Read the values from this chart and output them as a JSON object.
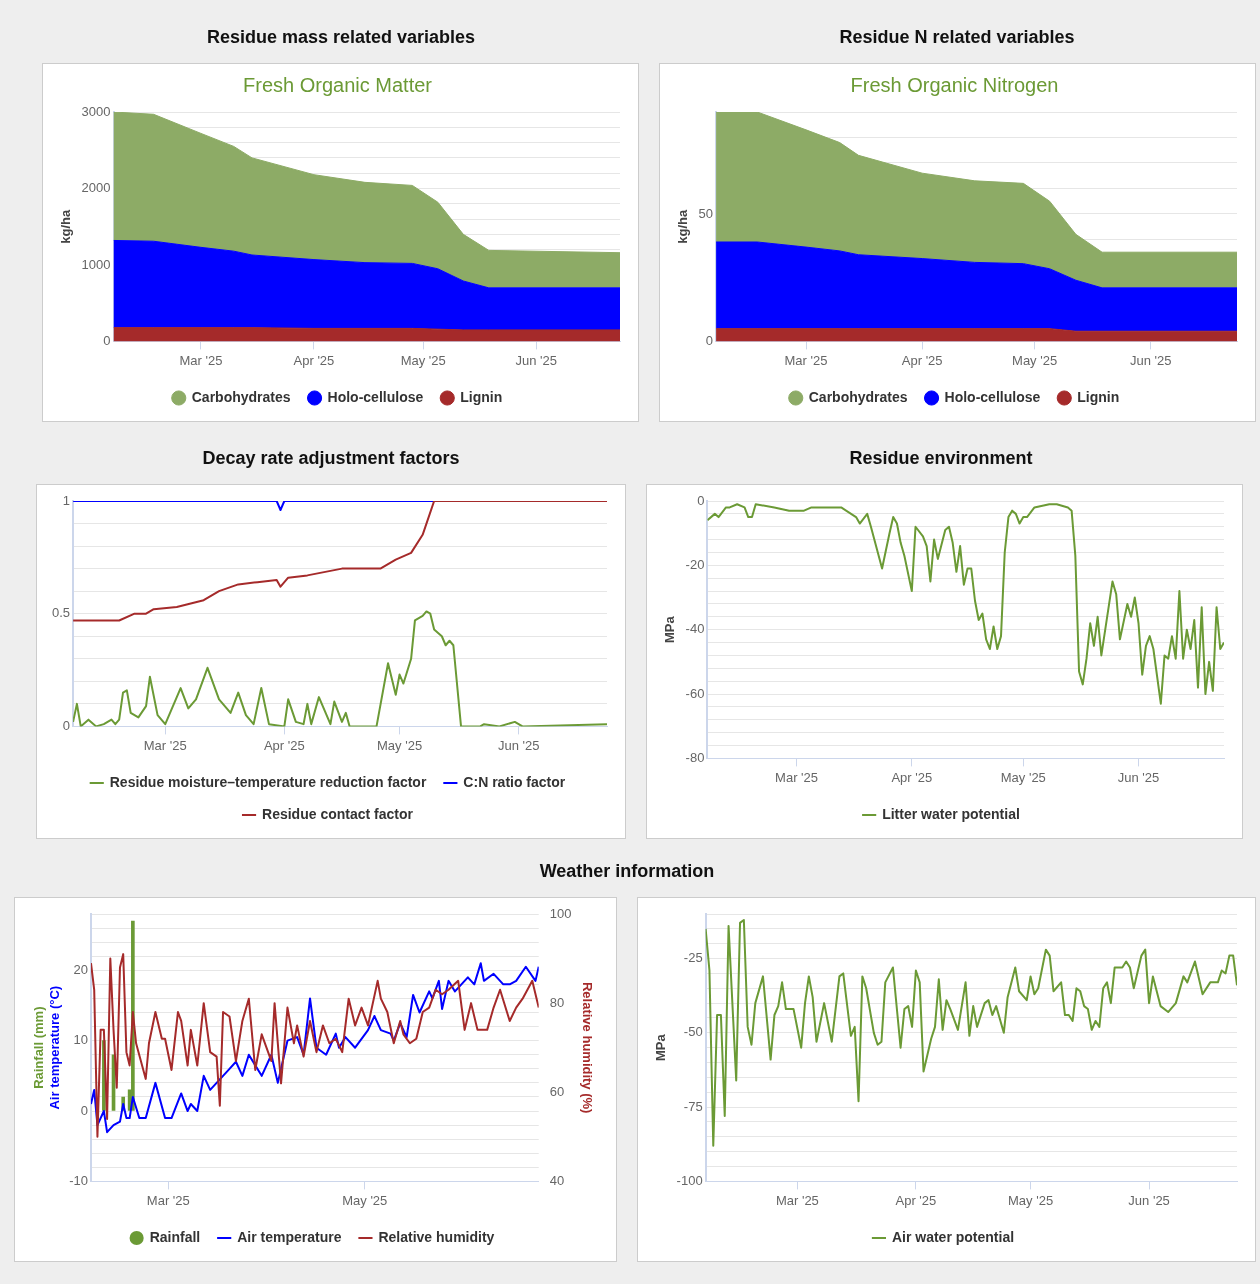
{
  "chart_data": [
    {
      "type": "area",
      "title": "Residue mass related variables",
      "subtitle": "Fresh Organic Matter",
      "ylabel": "kg/ha",
      "stacked": true,
      "marker": "none",
      "grid": "y",
      "legend": "bottom",
      "x": [
        "2025-02-05",
        "2025-02-16",
        "2025-03-01",
        "2025-03-10",
        "2025-03-15",
        "2025-04-01",
        "2025-04-15",
        "2025-04-28",
        "2025-05-05",
        "2025-05-12",
        "2025-05-19",
        "2025-06-24"
      ],
      "series": [
        {
          "name": "Lignin",
          "color": "#a52a2a",
          "values": [
            180,
            180,
            180,
            180,
            180,
            170,
            170,
            170,
            160,
            150,
            150,
            150
          ]
        },
        {
          "name": "Holo-cellulose",
          "color": "#0000ff",
          "values": [
            1140,
            1130,
            1050,
            1000,
            950,
            900,
            860,
            850,
            790,
            640,
            550,
            550
          ]
        },
        {
          "name": "Carbohydrates",
          "color": "#8dab66",
          "values": [
            1680,
            1660,
            1490,
            1370,
            1270,
            1110,
            1050,
            1020,
            870,
            610,
            490,
            460
          ]
        }
      ],
      "xlim": [
        "2025-02-05",
        "2025-06-24"
      ],
      "xticks": [
        {
          "value": "2025-03-01",
          "label": "Mar '25"
        },
        {
          "value": "2025-04-01",
          "label": "Apr '25"
        },
        {
          "value": "2025-05-01",
          "label": "May '25"
        },
        {
          "value": "2025-06-01",
          "label": "Jun '25"
        }
      ],
      "ylim": [
        0,
        3000
      ],
      "yticks": [
        0,
        1000,
        {
          "value": 1200,
          "label": null
        },
        {
          "value": 1400,
          "label": null
        },
        {
          "value": 1600,
          "label": null
        },
        {
          "value": 1800,
          "label": null
        },
        2000,
        {
          "value": 2200,
          "label": null
        },
        {
          "value": 2400,
          "label": null
        },
        {
          "value": 2600,
          "label": null
        },
        {
          "value": 2800,
          "label": null
        },
        3000
      ]
    },
    {
      "type": "area",
      "title": "Residue N related variables",
      "subtitle": "Fresh Organic Nitrogen",
      "ylabel": "kg/ha",
      "stacked": true,
      "marker": "none",
      "grid": "y",
      "legend": "bottom",
      "x": [
        "2025-02-05",
        "2025-02-16",
        "2025-03-01",
        "2025-03-10",
        "2025-03-15",
        "2025-04-01",
        "2025-04-15",
        "2025-04-28",
        "2025-05-05",
        "2025-05-12",
        "2025-05-19",
        "2025-06-24"
      ],
      "series": [
        {
          "name": "Lignin",
          "color": "#a52a2a",
          "values": [
            5,
            5,
            5,
            5,
            5,
            5,
            5,
            5,
            5,
            4,
            4,
            4
          ]
        },
        {
          "name": "Holo-cellulose",
          "color": "#0000ff",
          "values": [
            34,
            34,
            32,
            30.5,
            29,
            27.5,
            26,
            25.5,
            23.5,
            20,
            17,
            17
          ]
        },
        {
          "name": "Carbohydrates",
          "color": "#8dab66",
          "values": [
            51,
            51,
            46,
            42.5,
            39,
            33.5,
            32,
            31.5,
            26.5,
            18,
            14,
            14
          ]
        }
      ],
      "xlim": [
        "2025-02-05",
        "2025-06-24"
      ],
      "xticks": [
        {
          "value": "2025-03-01",
          "label": "Mar '25"
        },
        {
          "value": "2025-04-01",
          "label": "Apr '25"
        },
        {
          "value": "2025-05-01",
          "label": "May '25"
        },
        {
          "value": "2025-06-01",
          "label": "Jun '25"
        }
      ],
      "ylim": [
        0,
        90
      ],
      "yticks": [
        0,
        {
          "value": 40,
          "label": null
        },
        50,
        {
          "value": 60,
          "label": null
        },
        {
          "value": 70,
          "label": null
        },
        {
          "value": 80,
          "label": null
        },
        {
          "value": 90,
          "label": null
        }
      ]
    },
    {
      "type": "line",
      "title": "Decay rate adjustment factors",
      "marker": "none",
      "grid": "y",
      "legend": "bottom",
      "series": [
        {
          "name": "Residue moisture–temperature reduction factor",
          "color": "#6b9a35",
          "x": [
            "2025-02-05",
            "2025-02-06",
            "2025-02-07",
            "2025-02-09",
            "2025-02-11",
            "2025-02-13",
            "2025-02-15",
            "2025-02-16",
            "2025-02-17",
            "2025-02-18",
            "2025-02-19",
            "2025-02-20",
            "2025-02-22",
            "2025-02-24",
            "2025-02-25",
            "2025-02-27",
            "2025-03-01",
            "2025-03-05",
            "2025-03-07",
            "2025-03-09",
            "2025-03-12",
            "2025-03-15",
            "2025-03-18",
            "2025-03-20",
            "2025-03-22",
            "2025-03-24",
            "2025-03-26",
            "2025-03-28",
            "2025-04-01",
            "2025-04-02",
            "2025-04-04",
            "2025-04-06",
            "2025-04-07",
            "2025-04-08",
            "2025-04-10",
            "2025-04-13",
            "2025-04-14",
            "2025-04-16",
            "2025-04-17",
            "2025-04-18",
            "2025-04-25",
            "2025-04-28",
            "2025-04-30",
            "2025-05-01",
            "2025-05-02",
            "2025-05-04",
            "2025-05-05",
            "2025-05-07",
            "2025-05-08",
            "2025-05-09",
            "2025-05-10",
            "2025-05-12",
            "2025-05-13",
            "2025-05-14",
            "2025-05-15",
            "2025-05-17",
            "2025-05-22",
            "2025-05-23",
            "2025-05-27",
            "2025-05-31",
            "2025-06-02",
            "2025-06-24"
          ],
          "values": [
            0.02,
            0.1,
            0,
            0.03,
            0,
            0.01,
            0.03,
            0.01,
            0.03,
            0.15,
            0.16,
            0.06,
            0.04,
            0.09,
            0.22,
            0.05,
            0.01,
            0.17,
            0.08,
            0.12,
            0.26,
            0.12,
            0.06,
            0.15,
            0.05,
            0.01,
            0.17,
            0.01,
            0,
            0.12,
            0.02,
            0.01,
            0.1,
            0.01,
            0.13,
            0.01,
            0.11,
            0.02,
            0.06,
            0,
            0,
            0.28,
            0.14,
            0.23,
            0.19,
            0.3,
            0.47,
            0.49,
            0.51,
            0.5,
            0.43,
            0.4,
            0.36,
            0.38,
            0.36,
            0,
            0,
            0.01,
            0,
            0.02,
            0,
            0.01
          ]
        },
        {
          "name": "C:N ratio factor",
          "color": "#0000ff",
          "x": [
            "2025-02-05",
            "2025-03-30",
            "2025-03-31",
            "2025-04-01",
            "2025-05-10"
          ],
          "values": [
            1,
            1,
            0.96,
            1,
            1
          ]
        },
        {
          "name": "Residue contact factor",
          "color": "#a52a2a",
          "x": [
            "2025-02-05",
            "2025-02-17",
            "2025-02-21",
            "2025-02-24",
            "2025-02-26",
            "2025-03-04",
            "2025-03-11",
            "2025-03-15",
            "2025-03-20",
            "2025-03-25",
            "2025-03-30",
            "2025-03-31",
            "2025-04-02",
            "2025-04-07",
            "2025-04-16",
            "2025-04-26",
            "2025-04-30",
            "2025-05-04",
            "2025-05-07",
            "2025-05-10",
            "2025-06-24"
          ],
          "values": [
            0.47,
            0.47,
            0.5,
            0.5,
            0.52,
            0.53,
            0.56,
            0.6,
            0.63,
            0.64,
            0.65,
            0.62,
            0.66,
            0.67,
            0.7,
            0.7,
            0.74,
            0.77,
            0.85,
            1,
            1
          ]
        }
      ],
      "xlim": [
        "2025-02-05",
        "2025-06-24"
      ],
      "xticks": [
        {
          "value": "2025-03-01",
          "label": "Mar '25"
        },
        {
          "value": "2025-04-01",
          "label": "Apr '25"
        },
        {
          "value": "2025-05-01",
          "label": "May '25"
        },
        {
          "value": "2025-06-01",
          "label": "Jun '25"
        }
      ],
      "ylim": [
        0,
        1
      ],
      "yticks": [
        0,
        {
          "value": 0.1,
          "label": null
        },
        {
          "value": 0.2,
          "label": null
        },
        {
          "value": 0.3,
          "label": null
        },
        {
          "value": 0.4,
          "label": null
        },
        0.5,
        {
          "value": 0.6,
          "label": null
        },
        {
          "value": 0.7,
          "label": null
        },
        {
          "value": 0.8,
          "label": null
        },
        {
          "value": 0.9,
          "label": null
        },
        1
      ]
    },
    {
      "type": "line",
      "title": "Residue environment",
      "ylabel": "MPa",
      "marker": "none",
      "grid": "y",
      "legend": "bottom",
      "series": [
        {
          "name": "Litter water potential",
          "color": "#6b9a35",
          "x": [
            "2025-02-05",
            "2025-02-07",
            "2025-02-08",
            "2025-02-10",
            "2025-02-11",
            "2025-02-13",
            "2025-02-15",
            "2025-02-16",
            "2025-02-17",
            "2025-02-18",
            "2025-02-23",
            "2025-02-27",
            "2025-03-03",
            "2025-03-05",
            "2025-03-11",
            "2025-03-13",
            "2025-03-17",
            "2025-03-18",
            "2025-03-20",
            "2025-03-21",
            "2025-03-24",
            "2025-03-26",
            "2025-03-27",
            "2025-03-28",
            "2025-03-29",
            "2025-03-30",
            "2025-04-01",
            "2025-04-02",
            "2025-04-04",
            "2025-04-05",
            "2025-04-06",
            "2025-04-07",
            "2025-04-08",
            "2025-04-10",
            "2025-04-11",
            "2025-04-12",
            "2025-04-13",
            "2025-04-14",
            "2025-04-15",
            "2025-04-16",
            "2025-04-17",
            "2025-04-18",
            "2025-04-19",
            "2025-04-20",
            "2025-04-21",
            "2025-04-22",
            "2025-04-23",
            "2025-04-24",
            "2025-04-25",
            "2025-04-26",
            "2025-04-27",
            "2025-04-28",
            "2025-04-29",
            "2025-04-30",
            "2025-05-01",
            "2025-05-02",
            "2025-05-04",
            "2025-05-08",
            "2025-05-10",
            "2025-05-13",
            "2025-05-14",
            "2025-05-15",
            "2025-05-16",
            "2025-05-17",
            "2025-05-18",
            "2025-05-19",
            "2025-05-20",
            "2025-05-21",
            "2025-05-22",
            "2025-05-25",
            "2025-05-26",
            "2025-05-27",
            "2025-05-29",
            "2025-05-30",
            "2025-05-31",
            "2025-06-01",
            "2025-06-02",
            "2025-06-03",
            "2025-06-04",
            "2025-06-05",
            "2025-06-07",
            "2025-06-08",
            "2025-06-09",
            "2025-06-10",
            "2025-06-11",
            "2025-06-12",
            "2025-06-13",
            "2025-06-14",
            "2025-06-15",
            "2025-06-16",
            "2025-06-17",
            "2025-06-18",
            "2025-06-19",
            "2025-06-20",
            "2025-06-21",
            "2025-06-22",
            "2025-06-23",
            "2025-06-24"
          ],
          "values": [
            -6,
            -4,
            -5,
            -2,
            -2,
            -1,
            -2,
            -5,
            -5,
            -1,
            -2,
            -3,
            -3,
            -2,
            -2,
            -2,
            -5,
            -7,
            -4,
            -8,
            -21,
            -10,
            -5,
            -7,
            -13,
            -17,
            -28,
            -8,
            -11,
            -14,
            -25,
            -12,
            -18,
            -9,
            -8,
            -13,
            -22,
            -14,
            -26,
            -21,
            -21,
            -31,
            -37,
            -35,
            -43,
            -46,
            -39,
            -46,
            -42,
            -16,
            -5,
            -3,
            -4,
            -7,
            -5,
            -5,
            -2,
            -1,
            -1,
            -2,
            -3,
            -17,
            -53,
            -57,
            -49,
            -38,
            -45,
            -36,
            -48,
            -25,
            -29,
            -43,
            -32,
            -36,
            -30,
            -38,
            -54,
            -45,
            -42,
            -46,
            -63,
            -48,
            -49,
            -42,
            -49,
            -28,
            -49,
            -40,
            -46,
            -37,
            -58,
            -33,
            -60,
            -50,
            -59,
            -33,
            -46,
            -44
          ]
        }
      ],
      "xlim": [
        "2025-02-05",
        "2025-06-24"
      ],
      "xticks": [
        {
          "value": "2025-03-01",
          "label": "Mar '25"
        },
        {
          "value": "2025-04-01",
          "label": "Apr '25"
        },
        {
          "value": "2025-05-01",
          "label": "May '25"
        },
        {
          "value": "2025-06-01",
          "label": "Jun '25"
        }
      ],
      "ylim": [
        -80,
        0
      ],
      "yticks": [
        -80,
        {
          "value": -76,
          "label": null
        },
        {
          "value": -72,
          "label": null
        },
        {
          "value": -68,
          "label": null
        },
        {
          "value": -64,
          "label": null
        },
        -60,
        {
          "value": -56,
          "label": null
        },
        {
          "value": -52,
          "label": null
        },
        {
          "value": -48,
          "label": null
        },
        {
          "value": -44,
          "label": null
        },
        -40,
        {
          "value": -36,
          "label": null
        },
        {
          "value": -32,
          "label": null
        },
        {
          "value": -28,
          "label": null
        },
        {
          "value": -24,
          "label": null
        },
        -20,
        {
          "value": -16,
          "label": null
        },
        {
          "value": -12,
          "label": null
        },
        {
          "value": -8,
          "label": null
        },
        {
          "value": -4,
          "label": null
        },
        0
      ]
    },
    {
      "type": "line",
      "title": "Weather information",
      "ylabel": "Rainfall (mm)\nAir temperature (°C)",
      "y2label": "Relative humidity (%)",
      "marker": "none",
      "grid": "y",
      "legend": "bottom",
      "series": [
        {
          "name": "Rainfall",
          "type": "bar",
          "color": "#6b9a35",
          "x": [
            "2025-02-09",
            "2025-02-12",
            "2025-02-15",
            "2025-02-17",
            "2025-02-18"
          ],
          "values": [
            10,
            8,
            2,
            3,
            27
          ]
        },
        {
          "name": "Air temperature",
          "color": "#0000ff",
          "x": [
            "2025-02-05",
            "2025-02-06",
            "2025-02-07",
            "2025-02-09",
            "2025-02-10",
            "2025-02-12",
            "2025-02-14",
            "2025-02-15",
            "2025-02-16",
            "2025-02-17",
            "2025-02-18",
            "2025-02-20",
            "2025-02-22",
            "2025-02-25",
            "2025-02-28",
            "2025-03-02",
            "2025-03-05",
            "2025-03-07",
            "2025-03-08",
            "2025-03-10",
            "2025-03-12",
            "2025-03-14",
            "2025-03-18",
            "2025-03-20",
            "2025-03-22",
            "2025-03-24",
            "2025-03-26",
            "2025-03-30",
            "2025-04-02",
            "2025-04-04",
            "2025-04-07",
            "2025-04-10",
            "2025-04-12",
            "2025-04-14",
            "2025-04-16",
            "2025-04-19",
            "2025-04-22",
            "2025-04-23",
            "2025-04-25",
            "2025-04-28",
            "2025-05-02",
            "2025-05-04",
            "2025-05-06",
            "2025-05-09",
            "2025-05-10",
            "2025-05-12",
            "2025-05-14",
            "2025-05-16",
            "2025-05-18",
            "2025-05-21",
            "2025-05-22",
            "2025-05-24",
            "2025-05-25",
            "2025-05-27",
            "2025-05-29",
            "2025-05-31",
            "2025-06-02",
            "2025-06-04",
            "2025-06-06",
            "2025-06-07",
            "2025-06-10",
            "2025-06-13",
            "2025-06-15",
            "2025-06-17",
            "2025-06-20",
            "2025-06-23",
            "2025-06-24"
          ],
          "values": [
            1,
            3,
            -2,
            0,
            -3,
            -2,
            -1.5,
            1,
            -1,
            -1,
            2,
            -1,
            -1,
            4,
            -1,
            -1,
            2.5,
            0,
            1,
            0,
            5,
            3,
            5,
            6,
            7,
            5,
            8,
            5,
            8,
            4,
            10,
            10.5,
            8,
            16,
            9,
            8,
            11,
            9,
            10.5,
            9,
            11.5,
            13.5,
            11.5,
            11,
            10,
            12.5,
            10.5,
            16.5,
            14,
            17,
            16,
            18.5,
            14.5,
            18.5,
            17,
            18,
            19,
            18,
            21,
            18.5,
            19.5,
            18,
            18,
            18.5,
            20.5,
            18.5,
            20.5
          ]
        },
        {
          "name": "Relative humidity",
          "color": "#a52a2a",
          "axis": "y2",
          "x": [
            "2025-02-05",
            "2025-02-06",
            "2025-02-07",
            "2025-02-08",
            "2025-02-09",
            "2025-02-10",
            "2025-02-11",
            "2025-02-12",
            "2025-02-13",
            "2025-02-14",
            "2025-02-15",
            "2025-02-16",
            "2025-02-17",
            "2025-02-18",
            "2025-02-19",
            "2025-02-22",
            "2025-02-23",
            "2025-02-25",
            "2025-02-27",
            "2025-02-28",
            "2025-03-02",
            "2025-03-04",
            "2025-03-05",
            "2025-03-07",
            "2025-03-08",
            "2025-03-10",
            "2025-03-12",
            "2025-03-14",
            "2025-03-16",
            "2025-03-17",
            "2025-03-18",
            "2025-03-20",
            "2025-03-22",
            "2025-03-24",
            "2025-03-26",
            "2025-03-28",
            "2025-03-30",
            "2025-04-02",
            "2025-04-03",
            "2025-04-05",
            "2025-04-07",
            "2025-04-09",
            "2025-04-10",
            "2025-04-12",
            "2025-04-14",
            "2025-04-16",
            "2025-04-18",
            "2025-04-20",
            "2025-04-22",
            "2025-04-24",
            "2025-04-26",
            "2025-04-28",
            "2025-04-30",
            "2025-05-02",
            "2025-05-05",
            "2025-05-06",
            "2025-05-08",
            "2025-05-10",
            "2025-05-12",
            "2025-05-13",
            "2025-05-15",
            "2025-05-17",
            "2025-05-19",
            "2025-05-21",
            "2025-05-23",
            "2025-05-25",
            "2025-05-27",
            "2025-05-30",
            "2025-06-01",
            "2025-06-03",
            "2025-06-05",
            "2025-06-08",
            "2025-06-10",
            "2025-06-12",
            "2025-06-15",
            "2025-06-17",
            "2025-06-19",
            "2025-06-22",
            "2025-06-24"
          ],
          "values": [
            89,
            83,
            50,
            74,
            74,
            54,
            90,
            74,
            61,
            88,
            91,
            69,
            66,
            78,
            71,
            63,
            71,
            78,
            72,
            72,
            65,
            78,
            76,
            66,
            74,
            66,
            80,
            69,
            68,
            57,
            78,
            77,
            67,
            76,
            81,
            65,
            73,
            67,
            80,
            62,
            79,
            71,
            75,
            68,
            76,
            69,
            75,
            71,
            72,
            69,
            81,
            75,
            79,
            75,
            85,
            81,
            78,
            71,
            76,
            73,
            71,
            72,
            78,
            79,
            83,
            82,
            83,
            85,
            74,
            80,
            74,
            74,
            79,
            83,
            76,
            79,
            81,
            85,
            79
          ]
        }
      ],
      "xlim": [
        "2025-02-05",
        "2025-06-24"
      ],
      "xticks": [
        {
          "value": "2025-03-01",
          "label": "Mar '25"
        },
        {
          "value": "2025-05-01",
          "label": "May '25"
        }
      ],
      "ylim": [
        -10,
        28
      ],
      "yticks": [
        -10,
        {
          "value": -8,
          "label": null
        },
        {
          "value": -6,
          "label": null
        },
        {
          "value": -4,
          "label": null
        },
        {
          "value": -2,
          "label": null
        },
        0,
        {
          "value": 2,
          "label": null
        },
        {
          "value": 4,
          "label": null
        },
        {
          "value": 6,
          "label": null
        },
        {
          "value": 8,
          "label": null
        },
        10,
        {
          "value": 12,
          "label": null
        },
        {
          "value": 14,
          "label": null
        },
        {
          "value": 16,
          "label": null
        },
        {
          "value": 18,
          "label": null
        },
        20,
        {
          "value": 22,
          "label": null
        },
        {
          "value": 24,
          "label": null
        },
        {
          "value": 26,
          "label": null
        },
        {
          "value": 28,
          "label": null
        }
      ],
      "y2lim": [
        40,
        100
      ],
      "y2ticks": [
        40,
        60,
        80,
        100
      ]
    },
    {
      "type": "line",
      "ylabel": "MPa",
      "marker": "none",
      "grid": "y",
      "legend": "bottom",
      "series": [
        {
          "name": "Air water potential",
          "color": "#6b9a35",
          "x": [
            "2025-02-05",
            "2025-02-06",
            "2025-02-07",
            "2025-02-08",
            "2025-02-09",
            "2025-02-10",
            "2025-02-11",
            "2025-02-13",
            "2025-02-14",
            "2025-02-15",
            "2025-02-16",
            "2025-02-17",
            "2025-02-18",
            "2025-02-20",
            "2025-02-22",
            "2025-02-23",
            "2025-02-24",
            "2025-02-25",
            "2025-02-26",
            "2025-02-28",
            "2025-03-02",
            "2025-03-03",
            "2025-03-04",
            "2025-03-05",
            "2025-03-06",
            "2025-03-08",
            "2025-03-10",
            "2025-03-12",
            "2025-03-13",
            "2025-03-15",
            "2025-03-16",
            "2025-03-17",
            "2025-03-18",
            "2025-03-19",
            "2025-03-21",
            "2025-03-22",
            "2025-03-23",
            "2025-03-24",
            "2025-03-26",
            "2025-03-28",
            "2025-03-29",
            "2025-03-30",
            "2025-03-31",
            "2025-04-01",
            "2025-04-02",
            "2025-04-03",
            "2025-04-05",
            "2025-04-06",
            "2025-04-07",
            "2025-04-08",
            "2025-04-09",
            "2025-04-10",
            "2025-04-12",
            "2025-04-14",
            "2025-04-15",
            "2025-04-16",
            "2025-04-17",
            "2025-04-19",
            "2025-04-20",
            "2025-04-21",
            "2025-04-22",
            "2025-04-24",
            "2025-04-25",
            "2025-04-27",
            "2025-04-28",
            "2025-04-30",
            "2025-05-01",
            "2025-05-02",
            "2025-05-03",
            "2025-05-05",
            "2025-05-06",
            "2025-05-07",
            "2025-05-09",
            "2025-05-10",
            "2025-05-11",
            "2025-05-12",
            "2025-05-13",
            "2025-05-14",
            "2025-05-15",
            "2025-05-16",
            "2025-05-17",
            "2025-05-18",
            "2025-05-19",
            "2025-05-20",
            "2025-05-21",
            "2025-05-22",
            "2025-05-23",
            "2025-05-25",
            "2025-05-26",
            "2025-05-27",
            "2025-05-28",
            "2025-05-30",
            "2025-05-31",
            "2025-06-01",
            "2025-06-02",
            "2025-06-04",
            "2025-06-06",
            "2025-06-08",
            "2025-06-10",
            "2025-06-11",
            "2025-06-13",
            "2025-06-15",
            "2025-06-17",
            "2025-06-19",
            "2025-06-20",
            "2025-06-21",
            "2025-06-22",
            "2025-06-23",
            "2025-06-24"
          ],
          "values": [
            -15,
            -29,
            -88,
            -44,
            -44,
            -78,
            -14,
            -66,
            -13,
            -12,
            -48,
            -54,
            -40,
            -31,
            -59,
            -44,
            -41,
            -33,
            -42,
            -42,
            -55,
            -40,
            -31,
            -38,
            -53,
            -40,
            -53,
            -31,
            -30,
            -51,
            -48,
            -73,
            -31,
            -35,
            -50,
            -54,
            -53,
            -33,
            -28,
            -55,
            -42,
            -41,
            -48,
            -29,
            -33,
            -63,
            -52,
            -48,
            -32,
            -49,
            -39,
            -42,
            -49,
            -33,
            -51,
            -41,
            -48,
            -40,
            -39,
            -44,
            -41,
            -50,
            -38,
            -28,
            -36,
            -39,
            -31,
            -37,
            -35,
            -22,
            -24,
            -36,
            -33,
            -44,
            -44,
            -46,
            -35,
            -36,
            -41,
            -42,
            -49,
            -46,
            -48,
            -35,
            -33,
            -40,
            -28,
            -28,
            -26,
            -28,
            -35,
            -24,
            -22,
            -40,
            -31,
            -41,
            -43,
            -40,
            -31,
            -33,
            -26,
            -37,
            -33,
            -33,
            -29,
            -30,
            -24,
            -24,
            -34
          ]
        }
      ],
      "xlim": [
        "2025-02-05",
        "2025-06-24"
      ],
      "xticks": [
        {
          "value": "2025-03-01",
          "label": "Mar '25"
        },
        {
          "value": "2025-04-01",
          "label": "Apr '25"
        },
        {
          "value": "2025-05-01",
          "label": "May '25"
        },
        {
          "value": "2025-06-01",
          "label": "Jun '25"
        }
      ],
      "ylim": [
        -100,
        -10
      ],
      "yticks": [
        -100,
        {
          "value": -95,
          "label": null
        },
        {
          "value": -90,
          "label": null
        },
        {
          "value": -85,
          "label": null
        },
        {
          "value": -80,
          "label": null
        },
        -75,
        {
          "value": -70,
          "label": null
        },
        {
          "value": -65,
          "label": null
        },
        {
          "value": -60,
          "label": null
        },
        {
          "value": -55,
          "label": null
        },
        -50,
        {
          "value": -45,
          "label": null
        },
        {
          "value": -40,
          "label": null
        },
        {
          "value": -35,
          "label": null
        },
        {
          "value": -30,
          "label": null
        },
        -25,
        {
          "value": -20,
          "label": null
        },
        {
          "value": -15,
          "label": null
        },
        {
          "value": -10,
          "label": null
        }
      ]
    }
  ]
}
